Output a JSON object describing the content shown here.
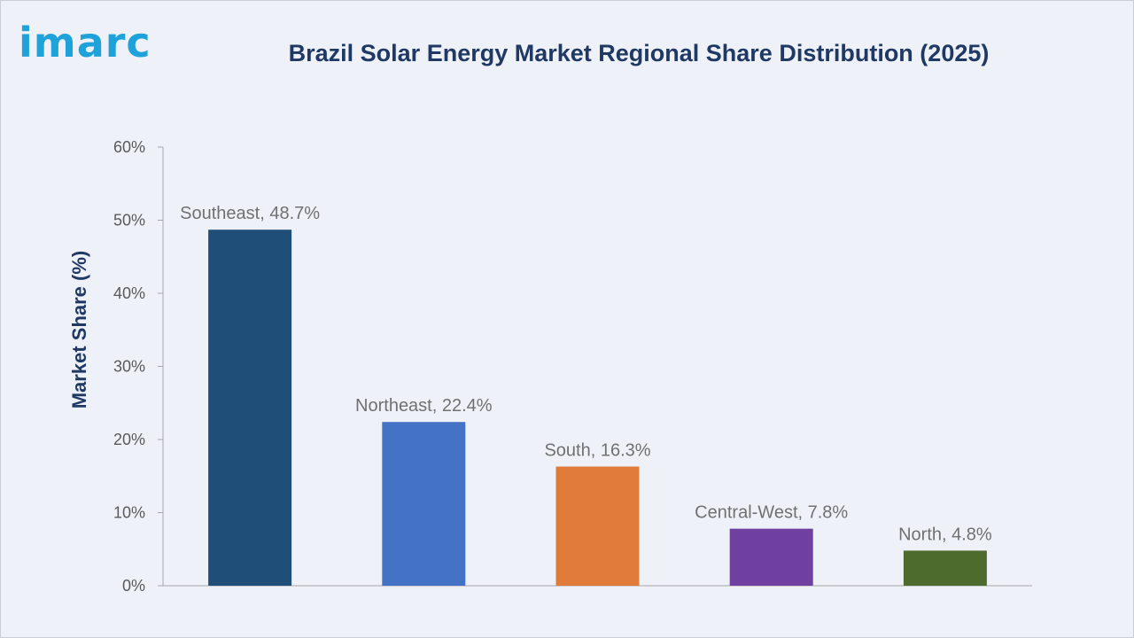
{
  "brand": {
    "logo_text": "imarc"
  },
  "chart_data": {
    "type": "bar",
    "title": "Brazil Solar Energy Market Regional Share Distribution (2025)",
    "xlabel": "",
    "ylabel": "Market Share (%)",
    "ylim": [
      0,
      60
    ],
    "yticks": [
      "0%",
      "10%",
      "20%",
      "30%",
      "40%",
      "50%",
      "60%"
    ],
    "categories": [
      "Southeast",
      "Northeast",
      "South",
      "Central-West",
      "North"
    ],
    "values": [
      48.7,
      22.4,
      16.3,
      7.8,
      4.8
    ],
    "data_labels": [
      "Southeast, 48.7%",
      "Northeast, 22.4%",
      "South, 16.3%",
      "Central-West, 7.8%",
      "North, 4.8%"
    ],
    "colors": [
      "#1f4e79",
      "#4472c4",
      "#e07b39",
      "#7040a0",
      "#4e6b2e"
    ],
    "grid": false,
    "legend": "none"
  }
}
